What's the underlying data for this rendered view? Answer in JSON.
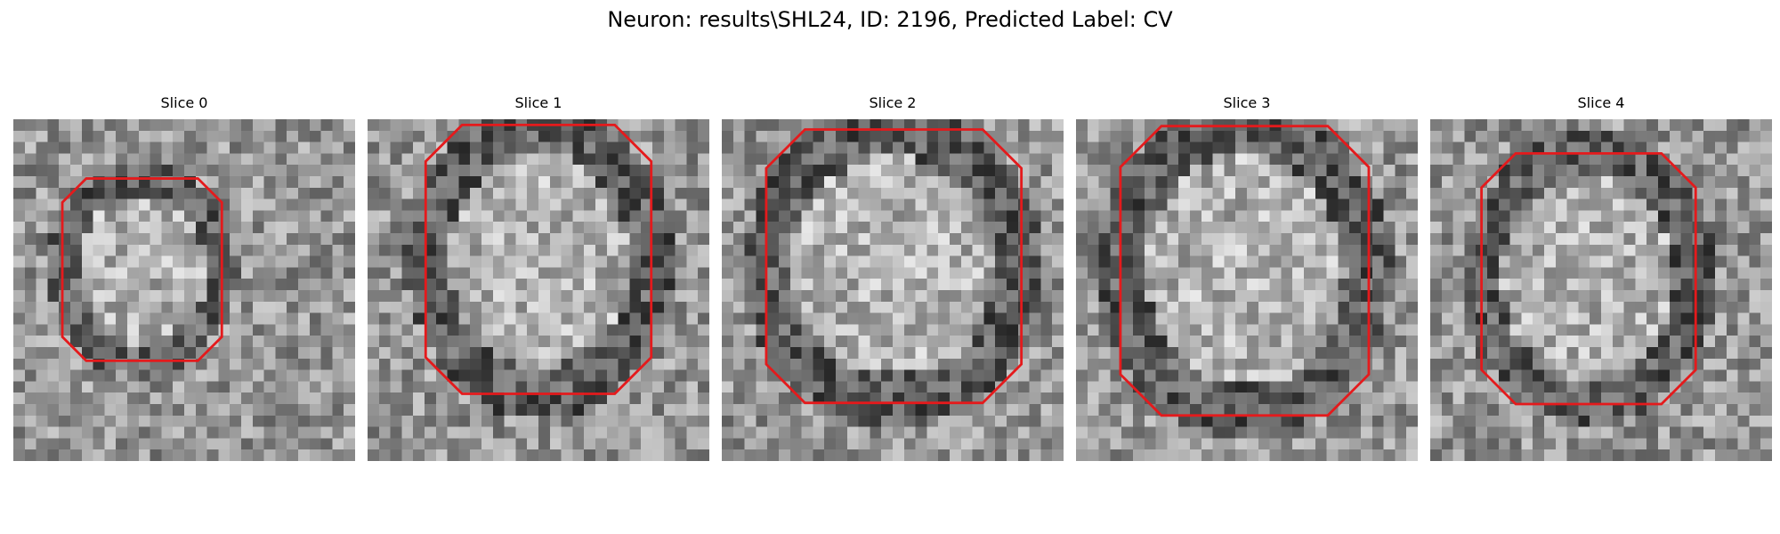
{
  "figure": {
    "title": "Neuron: results\\SHL24, ID: 2196, Predicted Label: CV"
  },
  "panels": [
    {
      "title": "Slice 0",
      "seed": 11,
      "contour_color": "#e41a1c"
    },
    {
      "title": "Slice 1",
      "seed": 23,
      "contour_color": "#e41a1c"
    },
    {
      "title": "Slice 2",
      "seed": 37,
      "contour_color": "#e41a1c"
    },
    {
      "title": "Slice 3",
      "seed": 51,
      "contour_color": "#e41a1c"
    },
    {
      "title": "Slice 4",
      "seed": 67,
      "contour_color": "#e41a1c"
    }
  ],
  "image_style": {
    "colormap": "gray",
    "contour_color": "#e41a1c"
  }
}
